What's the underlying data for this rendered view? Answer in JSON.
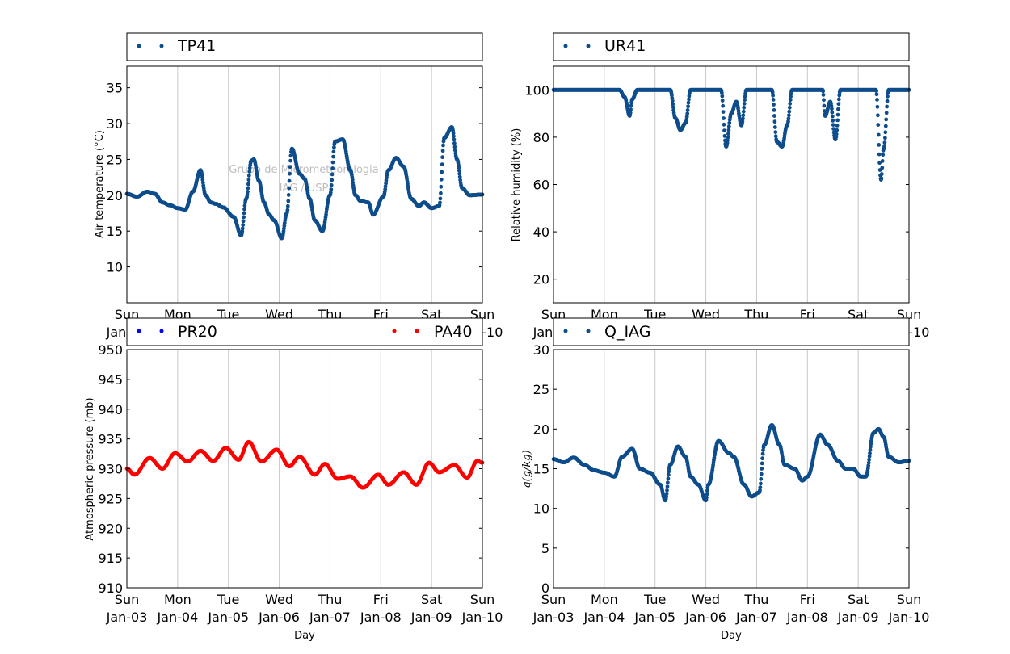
{
  "watermark": {
    "line1": "Grupo de Micrometeorologia",
    "line2": "IAG / USP"
  },
  "colors": {
    "dark_blue": "#0e4d8c",
    "blue": "#0000ff",
    "red": "#ff0000",
    "grid": "#c8c8c8"
  },
  "x_axis": {
    "label": "Day",
    "ticks": [
      {
        "day": 0,
        "name": "Sun",
        "date": "Jan-03"
      },
      {
        "day": 1,
        "name": "Mon",
        "date": "Jan-04"
      },
      {
        "day": 2,
        "name": "Tue",
        "date": "Jan-05"
      },
      {
        "day": 3,
        "name": "Wed",
        "date": "Jan-06"
      },
      {
        "day": 4,
        "name": "Thu",
        "date": "Jan-07"
      },
      {
        "day": 5,
        "name": "Fri",
        "date": "Jan-08"
      },
      {
        "day": 6,
        "name": "Sat",
        "date": "Jan-09"
      },
      {
        "day": 7,
        "name": "Sun",
        "date": "Jan-10"
      }
    ]
  },
  "chart_data": [
    {
      "type": "scatter",
      "ylabel": "Air temperature (°C)",
      "xlim": [
        "Jan-03",
        "Jan-10"
      ],
      "ylim": [
        5,
        38
      ],
      "yticks": [
        10,
        15,
        20,
        25,
        30,
        35
      ],
      "grid": "vertical",
      "legend": "top",
      "series": [
        {
          "name": "TP41",
          "color": "#0e4d8c",
          "x": [
            0,
            0.2,
            0.4,
            0.55,
            0.7,
            0.85,
            1.0,
            1.15,
            1.3,
            1.45,
            1.55,
            1.65,
            1.75,
            1.9,
            2.1,
            2.25,
            2.35,
            2.45,
            2.5,
            2.6,
            2.7,
            2.8,
            2.9,
            3.05,
            3.15,
            3.25,
            3.4,
            3.5,
            3.6,
            3.7,
            3.85,
            4.0,
            4.1,
            4.25,
            4.4,
            4.5,
            4.6,
            4.75,
            4.85,
            5.05,
            5.15,
            5.3,
            5.45,
            5.6,
            5.75,
            5.85,
            6.0,
            6.15,
            6.25,
            6.4,
            6.5,
            6.6,
            6.75,
            7.0
          ],
          "y": [
            20.2,
            19.8,
            20.5,
            20.2,
            19.0,
            18.6,
            18.2,
            18.0,
            20.5,
            23.5,
            20.0,
            19.0,
            18.8,
            18.3,
            17.0,
            14.4,
            19.5,
            24.8,
            25.0,
            22.0,
            19.0,
            17.3,
            16.5,
            14.0,
            17.5,
            26.5,
            23.0,
            22.3,
            19.5,
            16.5,
            15.0,
            20.0,
            27.5,
            27.8,
            23.5,
            20.0,
            19.2,
            19.0,
            17.3,
            19.8,
            23.5,
            25.2,
            24.0,
            19.5,
            18.5,
            19.0,
            18.2,
            18.5,
            28.0,
            29.5,
            25.0,
            21.0,
            20.0,
            20.1
          ]
        }
      ]
    },
    {
      "type": "scatter",
      "ylabel": "Relative humidity (%)",
      "xlim": [
        "Jan-03",
        "Jan-10"
      ],
      "ylim": [
        10,
        110
      ],
      "yticks": [
        20,
        40,
        60,
        80,
        100
      ],
      "grid": "vertical",
      "legend": "top",
      "series": [
        {
          "name": "UR41",
          "color": "#0e4d8c",
          "x": [
            0,
            1.3,
            1.4,
            1.5,
            1.55,
            1.65,
            1.7,
            2.3,
            2.4,
            2.5,
            2.6,
            2.7,
            2.75,
            3.3,
            3.4,
            3.5,
            3.6,
            3.7,
            3.8,
            3.9,
            4.3,
            4.4,
            4.5,
            4.6,
            4.7,
            4.75,
            5.3,
            5.35,
            5.45,
            5.55,
            5.65,
            5.75,
            6.35,
            6.45,
            6.5,
            6.6,
            7.0
          ],
          "y": [
            100,
            100,
            97,
            89,
            96,
            100,
            100,
            100,
            88,
            83,
            86,
            100,
            100,
            100,
            76,
            90,
            95,
            85,
            100,
            100,
            100,
            78,
            76,
            85,
            100,
            100,
            100,
            89,
            95,
            79,
            100,
            100,
            100,
            62,
            75,
            100,
            100
          ]
        }
      ]
    },
    {
      "type": "scatter",
      "ylabel": "Atmospheric pressure (mb)",
      "xlim": [
        "Jan-03",
        "Jan-10"
      ],
      "ylim": [
        910,
        950
      ],
      "yticks": [
        910,
        915,
        920,
        925,
        930,
        935,
        940,
        945,
        950
      ],
      "grid": "vertical",
      "legend": "top",
      "series": [
        {
          "name": "PR20",
          "color": "#0000ff",
          "x": [],
          "y": []
        },
        {
          "name": "PA40",
          "color": "#ff0000",
          "x": [
            0,
            0.15,
            0.45,
            0.7,
            0.95,
            1.2,
            1.45,
            1.7,
            1.95,
            2.2,
            2.4,
            2.65,
            2.95,
            3.2,
            3.4,
            3.7,
            3.9,
            4.15,
            4.4,
            4.65,
            4.95,
            5.15,
            5.45,
            5.7,
            5.95,
            6.15,
            6.45,
            6.7,
            6.9,
            7.0
          ],
          "y": [
            930,
            929,
            931.8,
            930,
            932.6,
            931.2,
            933,
            931.3,
            933.5,
            931.5,
            934.5,
            931.2,
            933.2,
            930.4,
            932,
            929,
            930.8,
            928.3,
            928.7,
            926.8,
            929,
            927.3,
            929.4,
            927.3,
            931,
            929.4,
            930.6,
            928.5,
            931.3,
            931
          ]
        }
      ]
    },
    {
      "type": "scatter",
      "ylabel": "q(g/kg)",
      "xlim": [
        "Jan-03",
        "Jan-10"
      ],
      "ylim": [
        0,
        30
      ],
      "yticks": [
        0,
        5,
        10,
        15,
        20,
        25,
        30
      ],
      "grid": "vertical",
      "legend": "top",
      "series": [
        {
          "name": "Q_IAG",
          "color": "#0e4d8c",
          "x": [
            0,
            0.2,
            0.4,
            0.6,
            0.8,
            1.0,
            1.2,
            1.35,
            1.55,
            1.7,
            1.9,
            2.1,
            2.2,
            2.3,
            2.45,
            2.6,
            2.7,
            2.85,
            3.0,
            3.05,
            3.25,
            3.45,
            3.55,
            3.75,
            3.9,
            4.05,
            4.15,
            4.3,
            4.45,
            4.55,
            4.75,
            4.9,
            5.0,
            5.25,
            5.4,
            5.6,
            5.75,
            5.9,
            6.05,
            6.15,
            6.3,
            6.4,
            6.5,
            6.6,
            6.8,
            7.0
          ],
          "y": [
            16.2,
            15.8,
            16.4,
            15.5,
            14.8,
            14.5,
            14.0,
            16.5,
            17.5,
            15.0,
            14.5,
            13.0,
            11.0,
            15.5,
            17.8,
            16.5,
            14.0,
            13.0,
            11.0,
            13.0,
            18.5,
            17.0,
            16.5,
            13.0,
            11.5,
            12.0,
            18.0,
            20.5,
            18.0,
            15.5,
            15.0,
            13.5,
            14.0,
            19.3,
            18.0,
            16.0,
            15.0,
            15.0,
            14.0,
            14.0,
            19.5,
            20.0,
            19.0,
            16.5,
            15.8,
            16.0
          ]
        }
      ]
    }
  ]
}
